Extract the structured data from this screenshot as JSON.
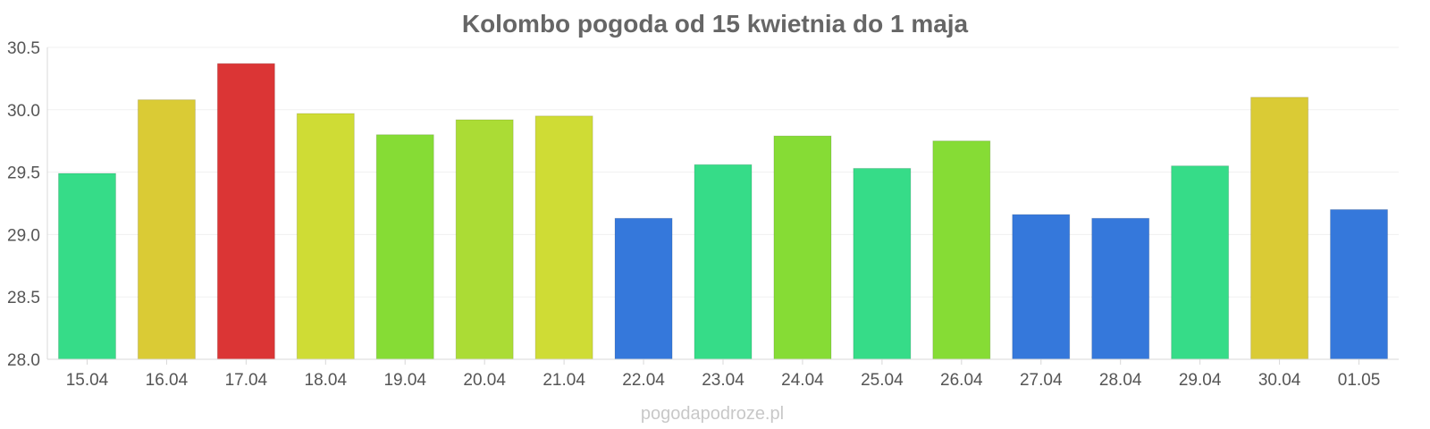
{
  "chart_data": {
    "type": "bar",
    "title": "Kolombo pogoda od 15 kwietnia do 1 maja",
    "xlabel": "",
    "ylabel": "",
    "categories": [
      "15.04",
      "16.04",
      "17.04",
      "18.04",
      "19.04",
      "20.04",
      "21.04",
      "22.04",
      "23.04",
      "24.04",
      "25.04",
      "26.04",
      "27.04",
      "28.04",
      "29.04",
      "30.04",
      "01.05"
    ],
    "values": [
      29.49,
      30.08,
      30.37,
      29.97,
      29.8,
      29.92,
      29.95,
      29.13,
      29.56,
      29.79,
      29.53,
      29.75,
      29.16,
      29.13,
      29.55,
      30.1,
      29.2
    ],
    "colors": [
      "#36dc88",
      "#dacb35",
      "#db3535",
      "#cfdc35",
      "#86dc35",
      "#abdc35",
      "#cfdc35",
      "#3578db",
      "#36dc88",
      "#86dc35",
      "#36dc88",
      "#86dc35",
      "#3578db",
      "#3578db",
      "#36dc88",
      "#dacb35",
      "#3578db"
    ],
    "ylim": [
      28.0,
      30.5
    ],
    "yticks": [
      "28.0",
      "28.5",
      "29.0",
      "29.5",
      "30.0",
      "30.5"
    ],
    "grid": true,
    "legend": "none"
  },
  "watermark": "pogodapodroze.pl"
}
